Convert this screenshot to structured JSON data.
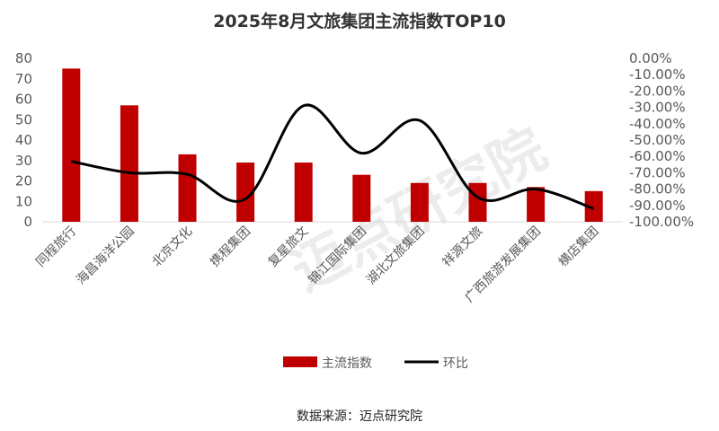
{
  "chart_data": {
    "type": "bar+line",
    "title": "2025年8月文旅集团主流指数TOP10",
    "categories": [
      "同程旅行",
      "海昌海洋公园",
      "北京文化",
      "携程集团",
      "复星旅文",
      "锦江国际集团",
      "湖北文旅集团",
      "祥源文旅",
      "广西旅游发展集团",
      "横店集团"
    ],
    "series": [
      {
        "name": "主流指数",
        "type": "bar",
        "axis": "left",
        "color": "#C00000",
        "values": [
          75,
          57,
          33,
          29,
          29,
          23,
          19,
          19,
          17,
          15
        ]
      },
      {
        "name": "环比",
        "type": "line",
        "smooth": true,
        "axis": "right",
        "color": "#000000",
        "values": [
          -63,
          -70,
          -71,
          -86,
          -29,
          -58,
          -38,
          -85,
          -80,
          -92
        ]
      }
    ],
    "left_axis": {
      "ylim": [
        0,
        80
      ],
      "ticks": [
        "0",
        "10",
        "20",
        "30",
        "40",
        "50",
        "60",
        "70",
        "80"
      ]
    },
    "right_axis": {
      "ylim": [
        -100,
        0
      ],
      "unit": "%",
      "ticks": [
        "0.00%",
        "-10.00%",
        "-20.00%",
        "-30.00%",
        "-40.00%",
        "-50.00%",
        "-60.00%",
        "-70.00%",
        "-80.00%",
        "-90.00%",
        "-100.00%"
      ]
    },
    "grid": false,
    "legend": "bottom",
    "source": "数据来源：迈点研究院",
    "watermark": "迈点研究院"
  }
}
